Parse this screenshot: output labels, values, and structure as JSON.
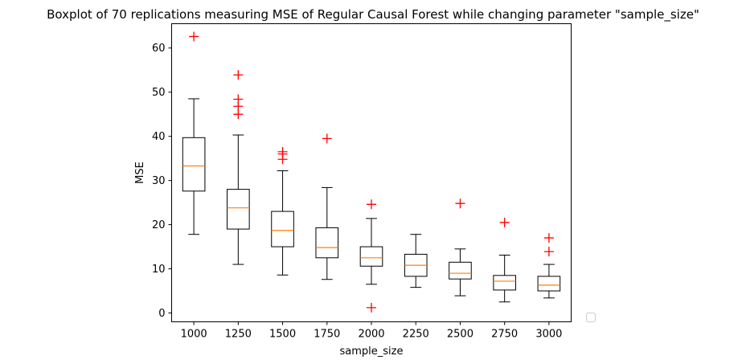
{
  "chart_data": {
    "type": "boxplot",
    "title": "Boxplot of 70 replications measuring MSE of Regular Causal Forest while changing parameter \"sample_size\"",
    "xlabel": "sample_size",
    "ylabel": "MSE",
    "ylim": [
      -2,
      65.5
    ],
    "yticks": [
      0,
      10,
      20,
      30,
      40,
      50,
      60
    ],
    "grid": false,
    "legend": "empty, lower-right outside axes",
    "colors": {
      "box": "#000000",
      "median": "#ff7f0e",
      "outlier": "#ff0000"
    },
    "categories": [
      "1000",
      "1250",
      "1500",
      "1750",
      "2000",
      "2250",
      "2500",
      "2750",
      "3000"
    ],
    "boxes": [
      {
        "label": "1000",
        "whisker_low": 17.8,
        "q1": 27.6,
        "median": 33.3,
        "q3": 39.7,
        "whisker_high": 48.5,
        "outliers": [
          62.6
        ]
      },
      {
        "label": "1250",
        "whisker_low": 11.0,
        "q1": 19.0,
        "median": 23.8,
        "q3": 28.0,
        "whisker_high": 40.3,
        "outliers": [
          53.9,
          48.4,
          46.8,
          45.0
        ]
      },
      {
        "label": "1500",
        "whisker_low": 8.6,
        "q1": 15.0,
        "median": 18.7,
        "q3": 23.0,
        "whisker_high": 32.2,
        "outliers": [
          36.5,
          36.0,
          34.8
        ]
      },
      {
        "label": "1750",
        "whisker_low": 7.6,
        "q1": 12.5,
        "median": 14.8,
        "q3": 19.3,
        "whisker_high": 28.4,
        "outliers": [
          39.5
        ]
      },
      {
        "label": "2000",
        "whisker_low": 6.5,
        "q1": 10.6,
        "median": 12.5,
        "q3": 15.0,
        "whisker_high": 21.4,
        "outliers": [
          24.6,
          1.2
        ]
      },
      {
        "label": "2250",
        "whisker_low": 5.8,
        "q1": 8.3,
        "median": 10.8,
        "q3": 13.3,
        "whisker_high": 17.8,
        "outliers": []
      },
      {
        "label": "2500",
        "whisker_low": 3.9,
        "q1": 7.7,
        "median": 9.0,
        "q3": 11.5,
        "whisker_high": 14.5,
        "outliers": [
          24.8
        ]
      },
      {
        "label": "2750",
        "whisker_low": 2.5,
        "q1": 5.2,
        "median": 7.2,
        "q3": 8.5,
        "whisker_high": 13.1,
        "outliers": [
          20.5
        ]
      },
      {
        "label": "3000",
        "whisker_low": 3.4,
        "q1": 5.0,
        "median": 6.3,
        "q3": 8.3,
        "whisker_high": 11.0,
        "outliers": [
          17.0,
          13.9
        ]
      }
    ]
  }
}
